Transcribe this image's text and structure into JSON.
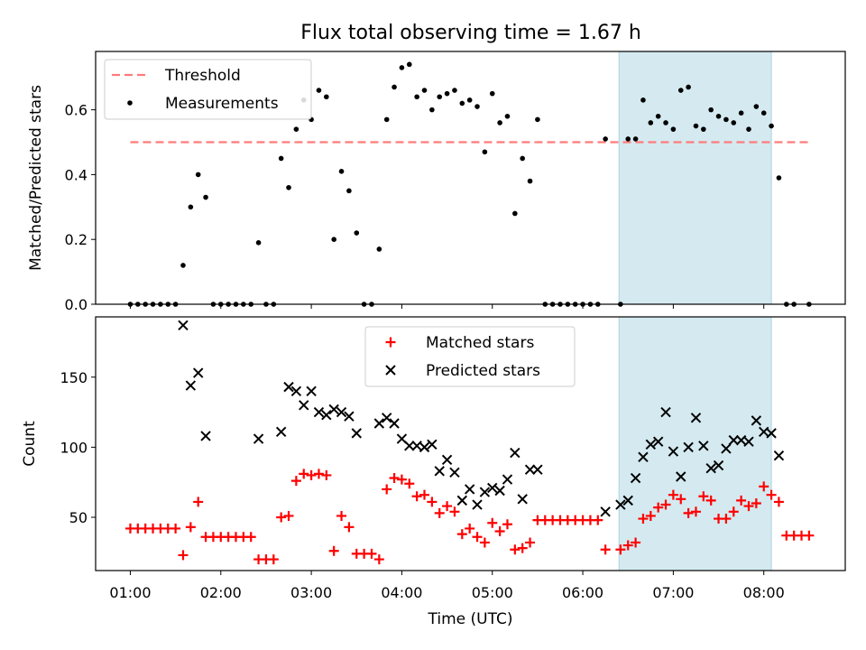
{
  "title": "Flux total observing time = 1.67 h",
  "chart_data": [
    {
      "type": "scatter",
      "ylabel": "Matched/Predicted stars",
      "xlabel": "",
      "xlim": [
        "00:37",
        "08:54"
      ],
      "ylim": [
        0,
        0.78
      ],
      "yticks": [
        0.0,
        0.2,
        0.4,
        0.6
      ],
      "ytick_labels": [
        "0.0",
        "0.2",
        "0.4",
        "0.6"
      ],
      "highlight_span": {
        "start": "06:24",
        "end": "08:05",
        "color": "#d4eaf0"
      },
      "legend": {
        "position": "upper-left",
        "entries": [
          {
            "label": "Threshold",
            "style": "dashed-line",
            "color": "#ff7b7b"
          },
          {
            "label": "Measurements",
            "style": "dot",
            "color": "#000000"
          }
        ]
      },
      "threshold": {
        "x": [
          "01:00",
          "08:30"
        ],
        "y": 0.5
      },
      "series": [
        {
          "name": "Measurements",
          "color": "#000000",
          "marker": "dot",
          "points": [
            [
              "01:00",
              0
            ],
            [
              "01:05",
              0
            ],
            [
              "01:10",
              0
            ],
            [
              "01:15",
              0
            ],
            [
              "01:20",
              0
            ],
            [
              "01:25",
              0
            ],
            [
              "01:30",
              0
            ],
            [
              "01:35",
              0.12
            ],
            [
              "01:40",
              0.3
            ],
            [
              "01:45",
              0.4
            ],
            [
              "01:50",
              0.33
            ],
            [
              "01:55",
              0
            ],
            [
              "02:00",
              0
            ],
            [
              "02:05",
              0
            ],
            [
              "02:10",
              0
            ],
            [
              "02:15",
              0
            ],
            [
              "02:20",
              0
            ],
            [
              "02:25",
              0.19
            ],
            [
              "02:30",
              0
            ],
            [
              "02:35",
              0
            ],
            [
              "02:40",
              0.45
            ],
            [
              "02:45",
              0.36
            ],
            [
              "02:50",
              0.54
            ],
            [
              "02:55",
              0.63
            ],
            [
              "03:00",
              0.57
            ],
            [
              "03:05",
              0.66
            ],
            [
              "03:10",
              0.64
            ],
            [
              "03:15",
              0.2
            ],
            [
              "03:20",
              0.41
            ],
            [
              "03:25",
              0.35
            ],
            [
              "03:30",
              0.22
            ],
            [
              "03:35",
              0
            ],
            [
              "03:40",
              0
            ],
            [
              "03:45",
              0.17
            ],
            [
              "03:50",
              0.57
            ],
            [
              "03:55",
              0.67
            ],
            [
              "04:00",
              0.73
            ],
            [
              "04:05",
              0.74
            ],
            [
              "04:10",
              0.64
            ],
            [
              "04:15",
              0.66
            ],
            [
              "04:20",
              0.6
            ],
            [
              "04:25",
              0.64
            ],
            [
              "04:30",
              0.65
            ],
            [
              "04:35",
              0.66
            ],
            [
              "04:40",
              0.62
            ],
            [
              "04:45",
              0.63
            ],
            [
              "04:50",
              0.61
            ],
            [
              "04:55",
              0.47
            ],
            [
              "05:00",
              0.65
            ],
            [
              "05:05",
              0.56
            ],
            [
              "05:10",
              0.58
            ],
            [
              "05:15",
              0.28
            ],
            [
              "05:20",
              0.45
            ],
            [
              "05:25",
              0.38
            ],
            [
              "05:30",
              0.57
            ],
            [
              "05:35",
              0
            ],
            [
              "05:40",
              0
            ],
            [
              "05:45",
              0
            ],
            [
              "05:50",
              0
            ],
            [
              "05:55",
              0
            ],
            [
              "06:00",
              0
            ],
            [
              "06:05",
              0
            ],
            [
              "06:10",
              0
            ],
            [
              "06:15",
              0.51
            ],
            [
              "06:25",
              0
            ],
            [
              "06:30",
              0.51
            ],
            [
              "06:35",
              0.51
            ],
            [
              "06:40",
              0.63
            ],
            [
              "06:45",
              0.56
            ],
            [
              "06:50",
              0.58
            ],
            [
              "06:55",
              0.56
            ],
            [
              "07:00",
              0.54
            ],
            [
              "07:05",
              0.66
            ],
            [
              "07:10",
              0.67
            ],
            [
              "07:15",
              0.55
            ],
            [
              "07:20",
              0.54
            ],
            [
              "07:25",
              0.6
            ],
            [
              "07:30",
              0.58
            ],
            [
              "07:35",
              0.57
            ],
            [
              "07:40",
              0.56
            ],
            [
              "07:45",
              0.59
            ],
            [
              "07:50",
              0.54
            ],
            [
              "07:55",
              0.61
            ],
            [
              "08:00",
              0.59
            ],
            [
              "08:05",
              0.55
            ],
            [
              "08:10",
              0.39
            ],
            [
              "08:15",
              0
            ],
            [
              "08:20",
              0
            ],
            [
              "08:30",
              0
            ]
          ]
        }
      ]
    },
    {
      "type": "scatter",
      "ylabel": "Count",
      "xlabel": "Time (UTC)",
      "xlim": [
        "00:37",
        "08:54"
      ],
      "ylim": [
        12,
        193
      ],
      "yticks": [
        50,
        100,
        150
      ],
      "ytick_labels": [
        "50",
        "100",
        "150"
      ],
      "xticks": [
        "01:00",
        "02:00",
        "03:00",
        "04:00",
        "05:00",
        "06:00",
        "07:00",
        "08:00"
      ],
      "highlight_span": {
        "start": "06:24",
        "end": "08:05",
        "color": "#d4eaf0"
      },
      "legend": {
        "position": "upper-center",
        "entries": [
          {
            "label": "Matched stars",
            "style": "plus",
            "color": "#ff0000"
          },
          {
            "label": "Predicted stars",
            "style": "x",
            "color": "#000000"
          }
        ]
      },
      "series": [
        {
          "name": "Matched stars",
          "color": "#ff0000",
          "marker": "plus",
          "points": [
            [
              "01:00",
              42
            ],
            [
              "01:05",
              42
            ],
            [
              "01:10",
              42
            ],
            [
              "01:15",
              42
            ],
            [
              "01:20",
              42
            ],
            [
              "01:25",
              42
            ],
            [
              "01:30",
              42
            ],
            [
              "01:35",
              23
            ],
            [
              "01:40",
              43
            ],
            [
              "01:45",
              61
            ],
            [
              "01:50",
              36
            ],
            [
              "01:55",
              36
            ],
            [
              "02:00",
              36
            ],
            [
              "02:05",
              36
            ],
            [
              "02:10",
              36
            ],
            [
              "02:15",
              36
            ],
            [
              "02:20",
              36
            ],
            [
              "02:25",
              20
            ],
            [
              "02:30",
              20
            ],
            [
              "02:35",
              20
            ],
            [
              "02:40",
              50
            ],
            [
              "02:45",
              51
            ],
            [
              "02:50",
              76
            ],
            [
              "02:55",
              81
            ],
            [
              "03:00",
              80
            ],
            [
              "03:05",
              81
            ],
            [
              "03:10",
              80
            ],
            [
              "03:15",
              26
            ],
            [
              "03:20",
              51
            ],
            [
              "03:25",
              43
            ],
            [
              "03:30",
              24
            ],
            [
              "03:35",
              24
            ],
            [
              "03:40",
              24
            ],
            [
              "03:45",
              20
            ],
            [
              "03:50",
              70
            ],
            [
              "03:55",
              78
            ],
            [
              "04:00",
              77
            ],
            [
              "04:05",
              74
            ],
            [
              "04:10",
              65
            ],
            [
              "04:15",
              66
            ],
            [
              "04:20",
              61
            ],
            [
              "04:25",
              53
            ],
            [
              "04:30",
              58
            ],
            [
              "04:35",
              54
            ],
            [
              "04:40",
              38
            ],
            [
              "04:45",
              42
            ],
            [
              "04:50",
              36
            ],
            [
              "04:55",
              32
            ],
            [
              "05:00",
              46
            ],
            [
              "05:05",
              40
            ],
            [
              "05:10",
              45
            ],
            [
              "05:15",
              27
            ],
            [
              "05:20",
              28
            ],
            [
              "05:25",
              32
            ],
            [
              "05:30",
              48
            ],
            [
              "05:35",
              48
            ],
            [
              "05:40",
              48
            ],
            [
              "05:45",
              48
            ],
            [
              "05:50",
              48
            ],
            [
              "05:55",
              48
            ],
            [
              "06:00",
              48
            ],
            [
              "06:05",
              48
            ],
            [
              "06:10",
              48
            ],
            [
              "06:15",
              27
            ],
            [
              "06:25",
              27
            ],
            [
              "06:30",
              30
            ],
            [
              "06:35",
              32
            ],
            [
              "06:40",
              49
            ],
            [
              "06:45",
              51
            ],
            [
              "06:50",
              57
            ],
            [
              "06:55",
              59
            ],
            [
              "07:00",
              66
            ],
            [
              "07:05",
              63
            ],
            [
              "07:10",
              53
            ],
            [
              "07:15",
              54
            ],
            [
              "07:20",
              65
            ],
            [
              "07:25",
              62
            ],
            [
              "07:30",
              49
            ],
            [
              "07:35",
              49
            ],
            [
              "07:40",
              54
            ],
            [
              "07:45",
              62
            ],
            [
              "07:50",
              58
            ],
            [
              "07:55",
              60
            ],
            [
              "08:00",
              72
            ],
            [
              "08:05",
              66
            ],
            [
              "08:10",
              61
            ],
            [
              "08:15",
              37
            ],
            [
              "08:20",
              37
            ],
            [
              "08:25",
              37
            ],
            [
              "08:30",
              37
            ]
          ]
        },
        {
          "name": "Predicted stars",
          "color": "#000000",
          "marker": "x",
          "points": [
            [
              "01:35",
              187
            ],
            [
              "01:40",
              144
            ],
            [
              "01:45",
              153
            ],
            [
              "01:50",
              108
            ],
            [
              "02:25",
              106
            ],
            [
              "02:40",
              111
            ],
            [
              "02:45",
              143
            ],
            [
              "02:50",
              140
            ],
            [
              "02:55",
              130
            ],
            [
              "03:00",
              140
            ],
            [
              "03:05",
              125
            ],
            [
              "03:10",
              123
            ],
            [
              "03:15",
              127
            ],
            [
              "03:20",
              125
            ],
            [
              "03:25",
              122
            ],
            [
              "03:30",
              110
            ],
            [
              "03:45",
              117
            ],
            [
              "03:50",
              121
            ],
            [
              "03:55",
              117
            ],
            [
              "04:00",
              106
            ],
            [
              "04:05",
              101
            ],
            [
              "04:10",
              101
            ],
            [
              "04:15",
              100
            ],
            [
              "04:20",
              102
            ],
            [
              "04:25",
              83
            ],
            [
              "04:30",
              91
            ],
            [
              "04:35",
              82
            ],
            [
              "04:40",
              62
            ],
            [
              "04:45",
              70
            ],
            [
              "04:50",
              59
            ],
            [
              "04:55",
              68
            ],
            [
              "05:00",
              71
            ],
            [
              "05:05",
              69
            ],
            [
              "05:10",
              77
            ],
            [
              "05:15",
              96
            ],
            [
              "05:20",
              63
            ],
            [
              "05:25",
              84
            ],
            [
              "05:30",
              84
            ],
            [
              "06:15",
              54
            ],
            [
              "06:25",
              59
            ],
            [
              "06:30",
              62
            ],
            [
              "06:35",
              78
            ],
            [
              "06:40",
              93
            ],
            [
              "06:45",
              102
            ],
            [
              "06:50",
              104
            ],
            [
              "06:55",
              125
            ],
            [
              "07:00",
              97
            ],
            [
              "07:05",
              79
            ],
            [
              "07:10",
              100
            ],
            [
              "07:15",
              121
            ],
            [
              "07:20",
              101
            ],
            [
              "07:25",
              85
            ],
            [
              "07:30",
              87
            ],
            [
              "07:35",
              99
            ],
            [
              "07:40",
              105
            ],
            [
              "07:45",
              105
            ],
            [
              "07:50",
              104
            ],
            [
              "07:55",
              119
            ],
            [
              "08:00",
              111
            ],
            [
              "08:05",
              110
            ],
            [
              "08:10",
              94
            ]
          ]
        }
      ]
    }
  ]
}
